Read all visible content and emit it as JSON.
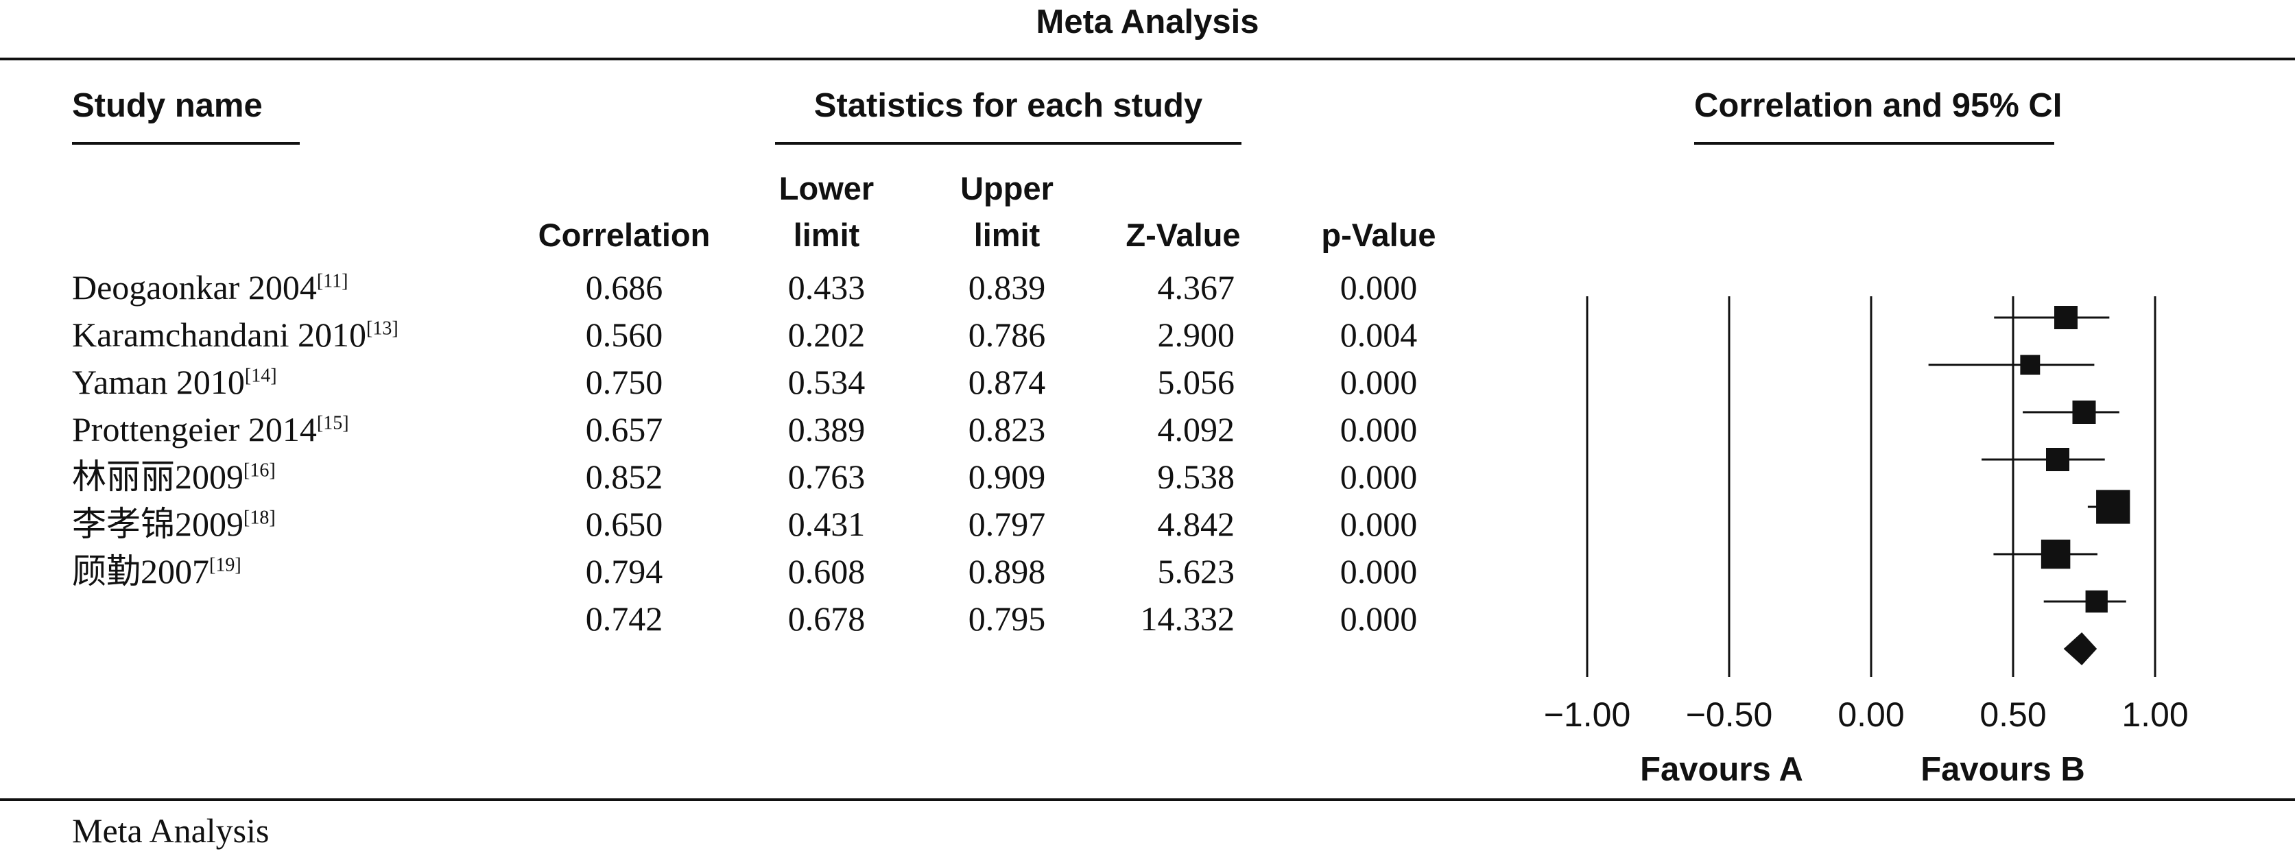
{
  "title": "Meta Analysis",
  "footer": "Meta Analysis",
  "headers": {
    "study_name": "Study name",
    "stats_group": "Statistics for each study",
    "plot_group": "Correlation and 95% CI",
    "correlation": "Correlation",
    "lower_1": "Lower",
    "lower_2": "limit",
    "upper_1": "Upper",
    "upper_2": "limit",
    "z_value": "Z-Value",
    "p_value": "p-Value"
  },
  "rows": [
    {
      "study": "Deogaonkar 2004",
      "ref": "[11]",
      "correlation": "0.686",
      "lower": "0.433",
      "upper": "0.839",
      "z": "4.367",
      "p": "0.000"
    },
    {
      "study": "Karamchandani 2010",
      "ref": "[13]",
      "correlation": "0.560",
      "lower": "0.202",
      "upper": "0.786",
      "z": "2.900",
      "p": "0.004"
    },
    {
      "study": "Yaman 2010",
      "ref": "[14]",
      "correlation": "0.750",
      "lower": "0.534",
      "upper": "0.874",
      "z": "5.056",
      "p": "0.000"
    },
    {
      "study": "Prottengeier 2014",
      "ref": "[15]",
      "correlation": "0.657",
      "lower": "0.389",
      "upper": "0.823",
      "z": "4.092",
      "p": "0.000"
    },
    {
      "study": "林丽丽2009",
      "ref": "[16]",
      "correlation": "0.852",
      "lower": "0.763",
      "upper": "0.909",
      "z": "9.538",
      "p": "0.000"
    },
    {
      "study": "李孝锦2009",
      "ref": "[18]",
      "correlation": "0.650",
      "lower": "0.431",
      "upper": "0.797",
      "z": "4.842",
      "p": "0.000"
    },
    {
      "study": "顾勤2007",
      "ref": "[19]",
      "correlation": "0.794",
      "lower": "0.608",
      "upper": "0.898",
      "z": "5.623",
      "p": "0.000"
    },
    {
      "study": "",
      "ref": "",
      "correlation": "0.742",
      "lower": "0.678",
      "upper": "0.795",
      "z": "14.332",
      "p": "0.000"
    }
  ],
  "chart_data": {
    "type": "forest",
    "x_ticks": [
      "−1.00",
      "−0.50",
      "0.00",
      "0.50",
      "1.00"
    ],
    "x_tick_values": [
      -1.0,
      -0.5,
      0.0,
      0.5,
      1.0
    ],
    "xlim": [
      -1.0,
      1.0
    ],
    "favours_a": "Favours A",
    "favours_b": "Favours B",
    "studies": [
      {
        "estimate": 0.686,
        "lower": 0.433,
        "upper": 0.839,
        "weight": 1.0
      },
      {
        "estimate": 0.56,
        "lower": 0.202,
        "upper": 0.786,
        "weight": 0.85
      },
      {
        "estimate": 0.75,
        "lower": 0.534,
        "upper": 0.874,
        "weight": 1.0
      },
      {
        "estimate": 0.657,
        "lower": 0.389,
        "upper": 0.823,
        "weight": 1.0
      },
      {
        "estimate": 0.852,
        "lower": 0.763,
        "upper": 0.909,
        "weight": 1.45
      },
      {
        "estimate": 0.65,
        "lower": 0.431,
        "upper": 0.797,
        "weight": 1.25
      },
      {
        "estimate": 0.794,
        "lower": 0.608,
        "upper": 0.898,
        "weight": 0.95
      }
    ],
    "summary": {
      "estimate": 0.742,
      "lower": 0.678,
      "upper": 0.795
    }
  }
}
